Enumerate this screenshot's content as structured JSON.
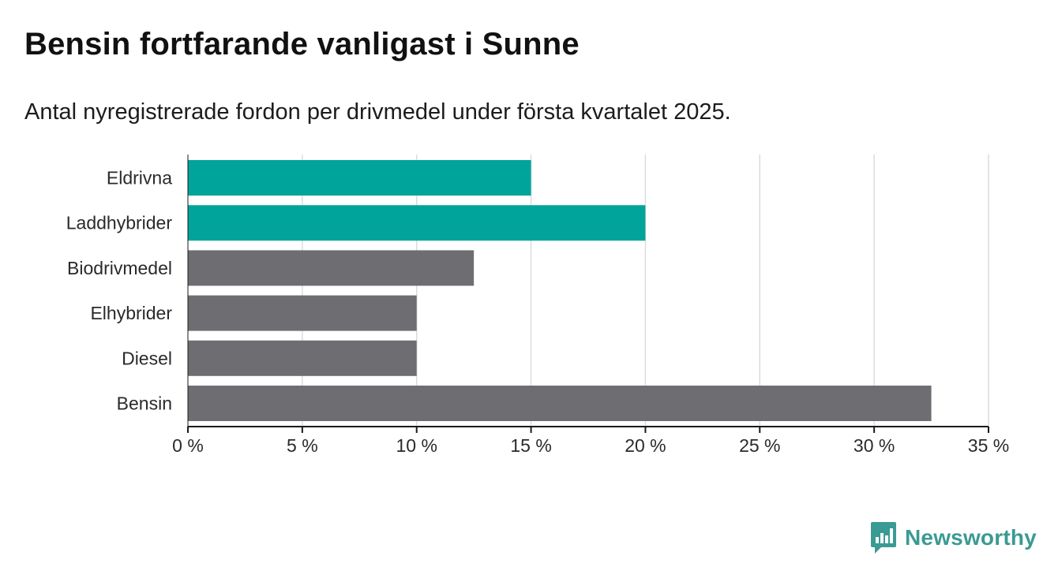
{
  "header": {
    "title": "Bensin fortfarande vanligast i Sunne",
    "subtitle": "Antal nyregistrerade fordon per drivmedel under första kvartalet 2025."
  },
  "chart_data": {
    "type": "bar",
    "orientation": "horizontal",
    "categories": [
      "Eldrivna",
      "Laddhybrider",
      "Biodrivmedel",
      "Elhybrider",
      "Diesel",
      "Bensin"
    ],
    "values": [
      15,
      20,
      12.5,
      10,
      10,
      32.5
    ],
    "unit": "%",
    "xlim": [
      0,
      35
    ],
    "x_ticks": [
      {
        "value": 0,
        "label": "0 %"
      },
      {
        "value": 5,
        "label": "5 %"
      },
      {
        "value": 10,
        "label": "10 %"
      },
      {
        "value": 15,
        "label": "15 %"
      },
      {
        "value": 20,
        "label": "20 %"
      },
      {
        "value": 25,
        "label": "25 %"
      },
      {
        "value": 30,
        "label": "30 %"
      },
      {
        "value": 35,
        "label": "35 %"
      }
    ],
    "grid": true,
    "bar_colors": [
      "#00a49a",
      "#00a49a",
      "#6e6d72",
      "#6e6d72",
      "#6e6d72",
      "#6e6d72"
    ],
    "grid_color": "#dcdcdc",
    "axis_color": "#1a1a1a"
  },
  "brand": {
    "name": "Newsworthy",
    "icon": "newsworthy-chart-bubble-icon",
    "color": "#3a9a94"
  }
}
